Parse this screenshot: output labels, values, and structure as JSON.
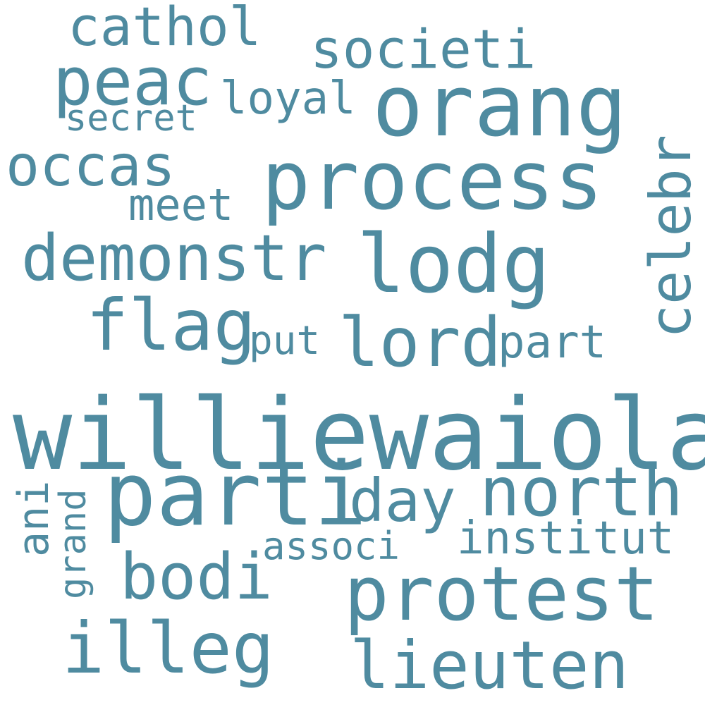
{
  "word_color": "#4f8ba0",
  "background": "#ffffff",
  "words": [
    {
      "text": "williewaiola",
      "vertical": false
    },
    {
      "text": "parti",
      "vertical": false
    },
    {
      "text": "process",
      "vertical": false
    },
    {
      "text": "orang",
      "vertical": false
    },
    {
      "text": "protest",
      "vertical": false
    },
    {
      "text": "lodg",
      "vertical": false
    },
    {
      "text": "demonstr",
      "vertical": false
    },
    {
      "text": "flag",
      "vertical": false
    },
    {
      "text": "lord",
      "vertical": false
    },
    {
      "text": "north",
      "vertical": false
    },
    {
      "text": "illeg",
      "vertical": false
    },
    {
      "text": "lieuten",
      "vertical": false
    },
    {
      "text": "peac",
      "vertical": false
    },
    {
      "text": "bodi",
      "vertical": false
    },
    {
      "text": "day",
      "vertical": false
    },
    {
      "text": "celebr",
      "vertical": true
    },
    {
      "text": "occas",
      "vertical": false
    },
    {
      "text": "cathol",
      "vertical": false
    },
    {
      "text": "societi",
      "vertical": false
    },
    {
      "text": "part",
      "vertical": false
    },
    {
      "text": "institut",
      "vertical": false
    },
    {
      "text": "loyal",
      "vertical": false
    },
    {
      "text": "meet",
      "vertical": false
    },
    {
      "text": "put",
      "vertical": false
    },
    {
      "text": "associ",
      "vertical": false
    },
    {
      "text": "ani",
      "vertical": true
    },
    {
      "text": "secret",
      "vertical": false
    },
    {
      "text": "grand",
      "vertical": true
    }
  ]
}
